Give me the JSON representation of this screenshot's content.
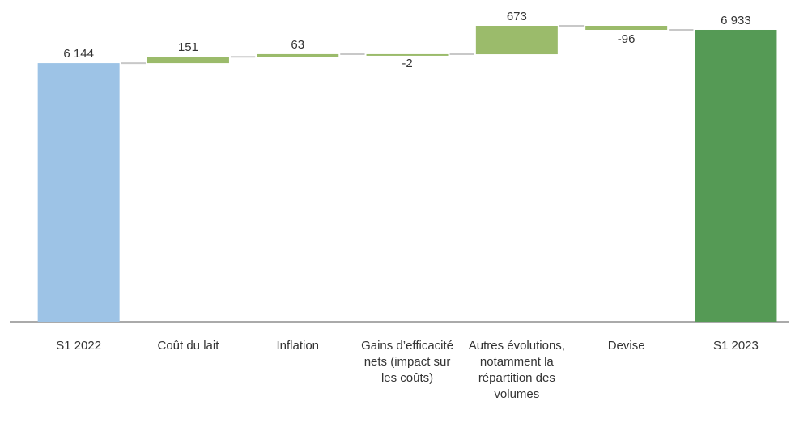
{
  "chart_data": {
    "type": "waterfall",
    "categories": [
      "S1 2022",
      "Coût du lait",
      "Inflation",
      "Gains d’efficacité nets (impact sur les coûts)",
      "Autres évolu­tions, notam­ment la réparti­tion des volumes",
      "Devise",
      "S1 2023"
    ],
    "values": [
      6144,
      151,
      63,
      -2,
      673,
      -96,
      6933
    ],
    "value_labels": [
      "6 144",
      "151",
      "63",
      "-2",
      "673",
      "-96",
      "6 933"
    ],
    "colors": [
      "#9dc3e6",
      "#9bbb6b",
      "#9bbb6b",
      "#9bbb6b",
      "#9bbb6b",
      "#9bbb6b",
      "#559a55"
    ],
    "connector_color": "#c8c8c8"
  }
}
